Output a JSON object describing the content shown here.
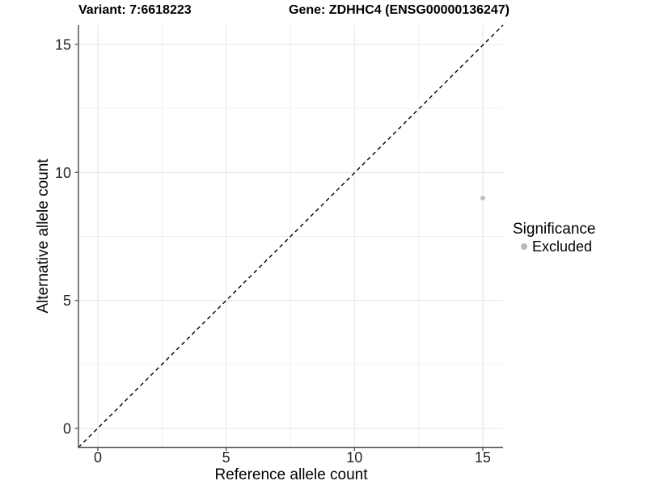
{
  "chart_data": {
    "type": "scatter",
    "title_left": "Variant: 7:6618223",
    "title_right": "Gene: ZDHHC4 (ENSG00000136247)",
    "xlabel": "Reference allele count",
    "ylabel": "Alternative allele count",
    "xlim": [
      0,
      15
    ],
    "ylim": [
      0,
      15
    ],
    "xticks": [
      0,
      5,
      10,
      15
    ],
    "yticks": [
      0,
      5,
      10,
      15
    ],
    "x_minor_ticks": [
      2.5,
      7.5,
      12.5
    ],
    "y_minor_ticks": [
      2.5,
      7.5,
      12.5
    ],
    "grid": "major and minor gridlines, light grey on white panel",
    "points": [
      {
        "x": 15,
        "y": 9,
        "significance": "Excluded"
      }
    ],
    "reference_line": {
      "kind": "identity y = x",
      "style": "dashed",
      "color": "#000000"
    },
    "legend": {
      "title": "Significance",
      "position": "right",
      "items": [
        {
          "label": "Excluded",
          "marker": "circle",
          "color": "#bdbdbd"
        }
      ]
    },
    "colors": {
      "point": "#c2c2c2",
      "legend_dot": "#b9b9b9",
      "grid_major": "#e4e4e4",
      "grid_minor": "#f0f0f0",
      "axis_line": "#5f5f5f",
      "tick_text": "#262626",
      "title_text": "#000000",
      "background": "#ffffff"
    }
  }
}
